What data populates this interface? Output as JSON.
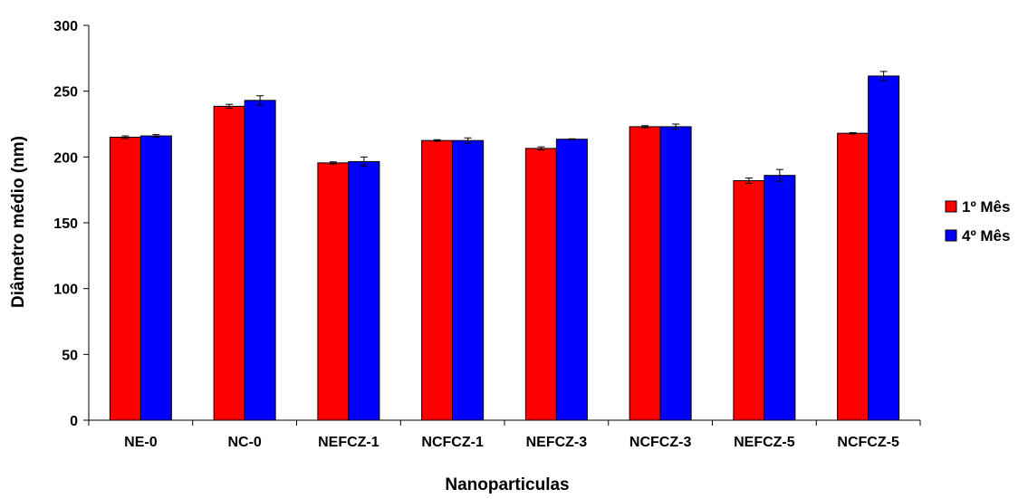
{
  "chart_data": {
    "type": "bar",
    "xlabel": "Nanoparticulas",
    "ylabel": "Diâmetro médio (nm)",
    "ylim": [
      0,
      300
    ],
    "yticks": [
      0,
      50,
      100,
      150,
      200,
      250,
      300
    ],
    "grid": false,
    "legend_position": "right",
    "categories": [
      "NE-0",
      "NC-0",
      "NEFCZ-1",
      "NCFCZ-1",
      "NEFCZ-3",
      "NCFCZ-3",
      "NEFCZ-5",
      "NCFCZ-5"
    ],
    "series": [
      {
        "name": "1º Mês",
        "color": "#ff0000",
        "values": [
          215,
          238.5,
          195.5,
          212.5,
          206.5,
          223,
          182,
          218
        ],
        "errors": [
          1,
          1.5,
          0.8,
          0.6,
          1.2,
          0.8,
          2,
          0.5
        ]
      },
      {
        "name": "4º Mês",
        "color": "#0000ff",
        "values": [
          216,
          243,
          196.5,
          212.5,
          213.5,
          223,
          186,
          261.5
        ],
        "errors": [
          1,
          3.5,
          3.5,
          2,
          0.3,
          2,
          4.5,
          3.5
        ]
      }
    ]
  }
}
